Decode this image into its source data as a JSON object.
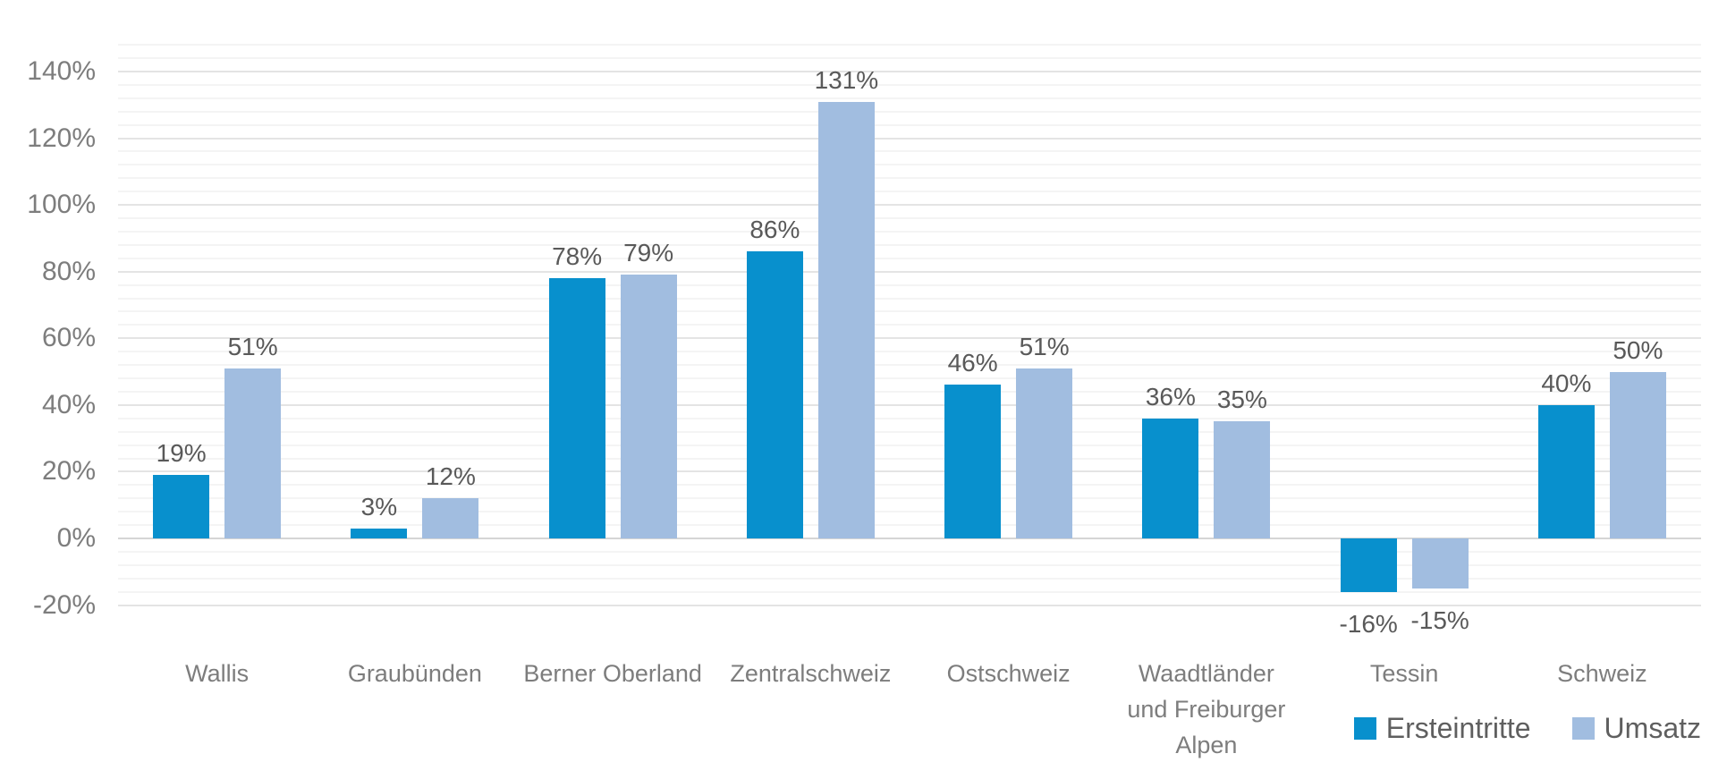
{
  "chart_data": {
    "type": "bar",
    "title": "",
    "categories": [
      "Wallis",
      "Graubünden",
      "Berner Oberland",
      "Zentralschweiz",
      "Ostschweiz",
      "Waadtländer und Freiburger Alpen",
      "Tessin",
      "Schweiz"
    ],
    "category_display_lines": [
      [
        "Wallis"
      ],
      [
        "Graubünden"
      ],
      [
        "Berner Oberland"
      ],
      [
        "Zentralschweiz"
      ],
      [
        "Ostschweiz"
      ],
      [
        "Waadtländer",
        "und Freiburger",
        "Alpen"
      ],
      [
        "Tessin"
      ],
      [
        "Schweiz"
      ]
    ],
    "series": [
      {
        "name": "Ersteintritte",
        "color": "#0890cd",
        "values": [
          19,
          3,
          78,
          86,
          46,
          36,
          -16,
          40
        ],
        "value_labels": [
          "19%",
          "3%",
          "78%",
          "86%",
          "46%",
          "36%",
          "-16%",
          "40%"
        ]
      },
      {
        "name": "Umsatz",
        "color": "#a1bde0",
        "values": [
          51,
          12,
          79,
          131,
          51,
          35,
          -15,
          50
        ],
        "value_labels": [
          "51%",
          "12%",
          "79%",
          "131%",
          "51%",
          "35%",
          "-15%",
          "50%"
        ]
      }
    ],
    "y_axis": {
      "min": -20,
      "max": 140,
      "major_step": 20,
      "minor_step": 4,
      "ticks": [
        {
          "value": 140,
          "label": "140%"
        },
        {
          "value": 120,
          "label": "120%"
        },
        {
          "value": 100,
          "label": "100%"
        },
        {
          "value": 80,
          "label": "80%"
        },
        {
          "value": 60,
          "label": "60%"
        },
        {
          "value": 40,
          "label": "40%"
        },
        {
          "value": 20,
          "label": "20%"
        },
        {
          "value": 0,
          "label": "0%"
        },
        {
          "value": -20,
          "label": "-20%"
        }
      ]
    },
    "legend": {
      "position": "bottom-right",
      "entries": [
        "Ersteintritte",
        "Umsatz"
      ]
    },
    "grid": {
      "major_color": "#e4e4e4",
      "minor_color": "#f4f4f4",
      "zero_line_color": "#d5d5d5"
    },
    "text_colors": {
      "value_label": "#595959",
      "axis_tick": "#7d7d7d",
      "category": "#7d7d7d",
      "legend": "#5f5f5f"
    },
    "background": "#ffffff"
  }
}
